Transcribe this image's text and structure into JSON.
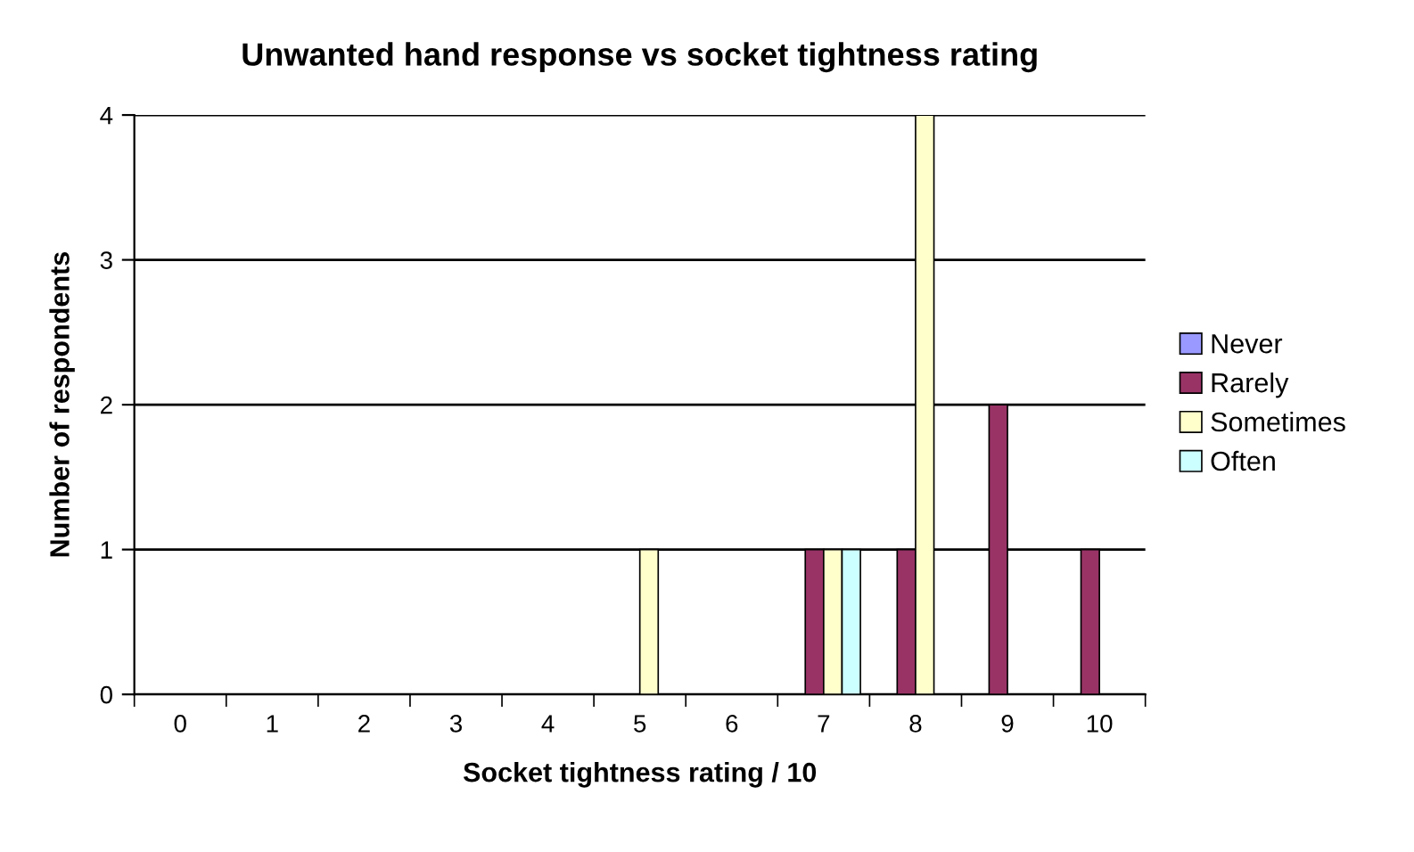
{
  "chart_data": {
    "type": "bar",
    "title": "Unwanted hand response vs socket tightness rating",
    "xlabel": "Socket tightness rating / 10",
    "ylabel": "Number of respondents",
    "categories": [
      "0",
      "1",
      "2",
      "3",
      "4",
      "5",
      "6",
      "7",
      "8",
      "9",
      "10"
    ],
    "series": [
      {
        "name": "Never",
        "color": "#9999ff",
        "values": [
          0,
          0,
          0,
          0,
          0,
          0,
          0,
          0,
          0,
          0,
          0
        ]
      },
      {
        "name": "Rarely",
        "color": "#993366",
        "values": [
          0,
          0,
          0,
          0,
          0,
          0,
          0,
          1,
          1,
          2,
          1
        ]
      },
      {
        "name": "Sometimes",
        "color": "#ffffcc",
        "values": [
          0,
          0,
          0,
          0,
          0,
          1,
          0,
          1,
          4,
          0,
          0
        ]
      },
      {
        "name": "Often",
        "color": "#ccffff",
        "values": [
          0,
          0,
          0,
          0,
          0,
          0,
          0,
          1,
          0,
          0,
          0
        ]
      }
    ],
    "ylim": [
      0,
      4
    ],
    "yticks": [
      0,
      1,
      2,
      3,
      4
    ],
    "grid": "y",
    "legend": "right"
  }
}
